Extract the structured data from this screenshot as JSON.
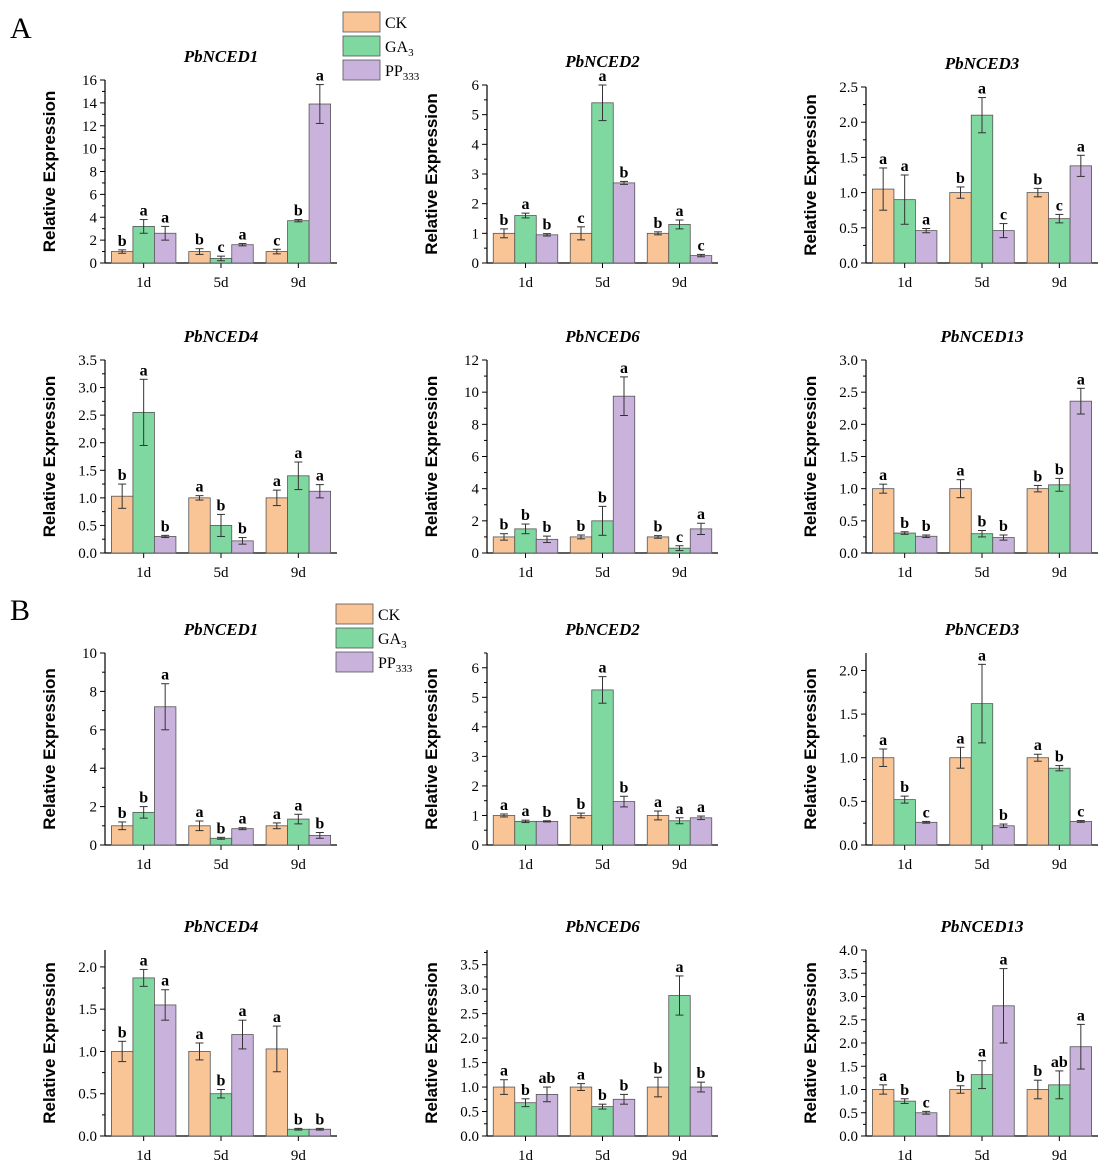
{
  "colors": {
    "CK": "#F9C496",
    "GA3": "#7FD8A0",
    "PP333": "#C9B3DC"
  },
  "y_axis_label": "Relative Expression",
  "groups": [
    "1d",
    "5d",
    "9d"
  ],
  "legend_series": [
    {
      "key": "CK",
      "label": "CK",
      "sub": ""
    },
    {
      "key": "GA3",
      "label": "GA",
      "sub": "3"
    },
    {
      "key": "PP333",
      "label": "PP",
      "sub": "333"
    }
  ],
  "panels": [
    {
      "label": "A"
    },
    {
      "label": "B"
    }
  ],
  "chart_data": [
    {
      "panel": "A",
      "type": "bar",
      "title": "PbNCED1",
      "ylim": [
        0,
        16
      ],
      "ystep": 2,
      "yticks_decimals": 0,
      "categories": [
        "1d",
        "5d",
        "9d"
      ],
      "series": [
        {
          "name": "CK",
          "values": [
            1.0,
            1.0,
            1.0
          ],
          "err": [
            0.15,
            0.25,
            0.2
          ],
          "sig": [
            "b",
            "b",
            "c"
          ]
        },
        {
          "name": "GA3",
          "values": [
            3.2,
            0.4,
            3.7
          ],
          "err": [
            0.6,
            0.2,
            0.1
          ],
          "sig": [
            "a",
            "c",
            "b"
          ]
        },
        {
          "name": "PP333",
          "values": [
            2.6,
            1.6,
            13.9
          ],
          "err": [
            0.6,
            0.1,
            1.7
          ],
          "sig": [
            "a",
            "a",
            "a"
          ]
        }
      ]
    },
    {
      "panel": "A",
      "type": "bar",
      "title": "PbNCED2",
      "ylim": [
        0,
        6
      ],
      "ystep": 1,
      "yticks_decimals": 0,
      "categories": [
        "1d",
        "5d",
        "9d"
      ],
      "series": [
        {
          "name": "CK",
          "values": [
            1.0,
            1.0,
            1.0
          ],
          "err": [
            0.15,
            0.22,
            0.05
          ],
          "sig": [
            "b",
            "c",
            "b"
          ]
        },
        {
          "name": "GA3",
          "values": [
            1.6,
            5.4,
            1.3
          ],
          "err": [
            0.08,
            0.6,
            0.15
          ],
          "sig": [
            "a",
            "a",
            "a"
          ]
        },
        {
          "name": "PP333",
          "values": [
            0.95,
            2.7,
            0.25
          ],
          "err": [
            0.04,
            0.05,
            0.04
          ],
          "sig": [
            "b",
            "b",
            "c"
          ]
        }
      ]
    },
    {
      "panel": "A",
      "type": "bar",
      "title": "PbNCED3",
      "ylim": [
        0,
        2.5
      ],
      "ystep": 0.5,
      "yticks_decimals": 1,
      "categories": [
        "1d",
        "5d",
        "9d"
      ],
      "series": [
        {
          "name": "CK",
          "values": [
            1.05,
            1.0,
            1.0
          ],
          "err": [
            0.3,
            0.08,
            0.06
          ],
          "sig": [
            "a",
            "b",
            "b"
          ]
        },
        {
          "name": "GA3",
          "values": [
            0.9,
            2.1,
            0.63
          ],
          "err": [
            0.35,
            0.25,
            0.06
          ],
          "sig": [
            "a",
            "a",
            "c"
          ]
        },
        {
          "name": "PP333",
          "values": [
            0.46,
            0.46,
            1.38
          ],
          "err": [
            0.03,
            0.1,
            0.15
          ],
          "sig": [
            "a",
            "c",
            "a"
          ]
        }
      ]
    },
    {
      "panel": "A",
      "type": "bar",
      "title": "PbNCED4",
      "ylim": [
        0,
        3.5
      ],
      "ystep": 0.5,
      "yticks_decimals": 1,
      "categories": [
        "1d",
        "5d",
        "9d"
      ],
      "series": [
        {
          "name": "CK",
          "values": [
            1.03,
            1.0,
            1.0
          ],
          "err": [
            0.22,
            0.04,
            0.14
          ],
          "sig": [
            "b",
            "a",
            "a"
          ]
        },
        {
          "name": "GA3",
          "values": [
            2.55,
            0.5,
            1.4
          ],
          "err": [
            0.6,
            0.2,
            0.25
          ],
          "sig": [
            "a",
            "b",
            "a"
          ]
        },
        {
          "name": "PP333",
          "values": [
            0.3,
            0.22,
            1.12
          ],
          "err": [
            0.02,
            0.06,
            0.12
          ],
          "sig": [
            "b",
            "b",
            "a"
          ]
        }
      ]
    },
    {
      "panel": "A",
      "type": "bar",
      "title": "PbNCED6",
      "ylim": [
        0,
        12
      ],
      "ystep": 2,
      "yticks_decimals": 0,
      "categories": [
        "1d",
        "5d",
        "9d"
      ],
      "series": [
        {
          "name": "CK",
          "values": [
            1.0,
            1.0,
            1.0
          ],
          "err": [
            0.2,
            0.12,
            0.08
          ],
          "sig": [
            "b",
            "b",
            "b"
          ]
        },
        {
          "name": "GA3",
          "values": [
            1.5,
            2.0,
            0.3
          ],
          "err": [
            0.3,
            0.9,
            0.15
          ],
          "sig": [
            "b",
            "b",
            "c"
          ]
        },
        {
          "name": "PP333",
          "values": [
            0.85,
            9.75,
            1.5
          ],
          "err": [
            0.2,
            1.2,
            0.35
          ],
          "sig": [
            "b",
            "a",
            "a"
          ]
        }
      ]
    },
    {
      "panel": "A",
      "type": "bar",
      "title": "PbNCED13",
      "ylim": [
        0,
        3.0
      ],
      "ystep": 0.5,
      "yticks_decimals": 1,
      "categories": [
        "1d",
        "5d",
        "9d"
      ],
      "series": [
        {
          "name": "CK",
          "values": [
            1.0,
            1.0,
            1.0
          ],
          "err": [
            0.07,
            0.14,
            0.05
          ],
          "sig": [
            "a",
            "a",
            "b"
          ]
        },
        {
          "name": "GA3",
          "values": [
            0.31,
            0.3,
            1.06
          ],
          "err": [
            0.02,
            0.05,
            0.1
          ],
          "sig": [
            "b",
            "b",
            "b"
          ]
        },
        {
          "name": "PP333",
          "values": [
            0.26,
            0.24,
            2.36
          ],
          "err": [
            0.02,
            0.04,
            0.2
          ],
          "sig": [
            "b",
            "b",
            "a"
          ]
        }
      ]
    },
    {
      "panel": "B",
      "type": "bar",
      "title": "PbNCED1",
      "ylim": [
        0,
        10
      ],
      "ystep": 2,
      "yticks_decimals": 0,
      "categories": [
        "1d",
        "5d",
        "9d"
      ],
      "series": [
        {
          "name": "CK",
          "values": [
            1.0,
            1.0,
            1.0
          ],
          "err": [
            0.2,
            0.25,
            0.15
          ],
          "sig": [
            "b",
            "a",
            "a"
          ]
        },
        {
          "name": "GA3",
          "values": [
            1.7,
            0.35,
            1.35
          ],
          "err": [
            0.3,
            0.05,
            0.25
          ],
          "sig": [
            "b",
            "b",
            "a"
          ]
        },
        {
          "name": "PP333",
          "values": [
            7.2,
            0.85,
            0.5
          ],
          "err": [
            1.2,
            0.05,
            0.15
          ],
          "sig": [
            "a",
            "a",
            "b"
          ]
        }
      ]
    },
    {
      "panel": "B",
      "type": "bar",
      "title": "PbNCED2",
      "ylim": [
        0,
        6.5
      ],
      "ystep": 1,
      "yticks_decimals": 0,
      "categories": [
        "1d",
        "5d",
        "9d"
      ],
      "series": [
        {
          "name": "CK",
          "values": [
            1.0,
            1.0,
            1.0
          ],
          "err": [
            0.05,
            0.08,
            0.15
          ],
          "sig": [
            "a",
            "b",
            "a"
          ]
        },
        {
          "name": "GA3",
          "values": [
            0.8,
            5.25,
            0.82
          ],
          "err": [
            0.04,
            0.45,
            0.1
          ],
          "sig": [
            "a",
            "a",
            "a"
          ]
        },
        {
          "name": "PP333",
          "values": [
            0.8,
            1.47,
            0.92
          ],
          "err": [
            0.02,
            0.18,
            0.06
          ],
          "sig": [
            "b",
            "b",
            "a"
          ]
        }
      ]
    },
    {
      "panel": "B",
      "type": "bar",
      "title": "PbNCED3",
      "ylim": [
        0,
        2.2
      ],
      "ystep": 0.5,
      "yticks_decimals": 1,
      "categories": [
        "1d",
        "5d",
        "9d"
      ],
      "series": [
        {
          "name": "CK",
          "values": [
            1.0,
            1.0,
            1.0
          ],
          "err": [
            0.1,
            0.12,
            0.04
          ],
          "sig": [
            "a",
            "a",
            "a"
          ]
        },
        {
          "name": "GA3",
          "values": [
            0.52,
            1.62,
            0.88
          ],
          "err": [
            0.04,
            0.45,
            0.03
          ],
          "sig": [
            "b",
            "a",
            "b"
          ]
        },
        {
          "name": "PP333",
          "values": [
            0.26,
            0.22,
            0.27
          ],
          "err": [
            0.01,
            0.02,
            0.01
          ],
          "sig": [
            "c",
            "b",
            "c"
          ]
        }
      ]
    },
    {
      "panel": "B",
      "type": "bar",
      "title": "PbNCED4",
      "ylim": [
        0,
        2.2
      ],
      "ystep": 0.5,
      "yticks_decimals": 1,
      "categories": [
        "1d",
        "5d",
        "9d"
      ],
      "series": [
        {
          "name": "CK",
          "values": [
            1.0,
            1.0,
            1.03
          ],
          "err": [
            0.12,
            0.1,
            0.27
          ],
          "sig": [
            "b",
            "a",
            "a"
          ]
        },
        {
          "name": "GA3",
          "values": [
            1.87,
            0.5,
            0.08
          ],
          "err": [
            0.1,
            0.05,
            0.01
          ],
          "sig": [
            "a",
            "b",
            "b"
          ]
        },
        {
          "name": "PP333",
          "values": [
            1.55,
            1.2,
            0.08
          ],
          "err": [
            0.18,
            0.17,
            0.01
          ],
          "sig": [
            "a",
            "a",
            "b"
          ]
        }
      ]
    },
    {
      "panel": "B",
      "type": "bar",
      "title": "PbNCED6",
      "ylim": [
        0,
        3.8
      ],
      "ystep": 0.5,
      "yticks_decimals": 1,
      "categories": [
        "1d",
        "5d",
        "9d"
      ],
      "series": [
        {
          "name": "CK",
          "values": [
            1.0,
            1.0,
            1.0
          ],
          "err": [
            0.15,
            0.07,
            0.2
          ],
          "sig": [
            "a",
            "a",
            "b"
          ]
        },
        {
          "name": "GA3",
          "values": [
            0.68,
            0.6,
            2.87
          ],
          "err": [
            0.08,
            0.05,
            0.4
          ],
          "sig": [
            "b",
            "b",
            "a"
          ]
        },
        {
          "name": "PP333",
          "values": [
            0.85,
            0.75,
            1.0
          ],
          "err": [
            0.15,
            0.1,
            0.1
          ],
          "sig": [
            "ab",
            "b",
            "b"
          ]
        }
      ]
    },
    {
      "panel": "B",
      "type": "bar",
      "title": "PbNCED13",
      "ylim": [
        0,
        4.0
      ],
      "ystep": 0.5,
      "yticks_decimals": 1,
      "categories": [
        "1d",
        "5d",
        "9d"
      ],
      "series": [
        {
          "name": "CK",
          "values": [
            1.0,
            1.0,
            1.0
          ],
          "err": [
            0.1,
            0.08,
            0.2
          ],
          "sig": [
            "a",
            "b",
            "b"
          ]
        },
        {
          "name": "GA3",
          "values": [
            0.75,
            1.32,
            1.1
          ],
          "err": [
            0.05,
            0.3,
            0.3
          ],
          "sig": [
            "b",
            "a",
            "ab"
          ]
        },
        {
          "name": "PP333",
          "values": [
            0.5,
            2.8,
            1.92
          ],
          "err": [
            0.03,
            0.8,
            0.48
          ],
          "sig": [
            "c",
            "a",
            "a"
          ]
        }
      ]
    }
  ]
}
